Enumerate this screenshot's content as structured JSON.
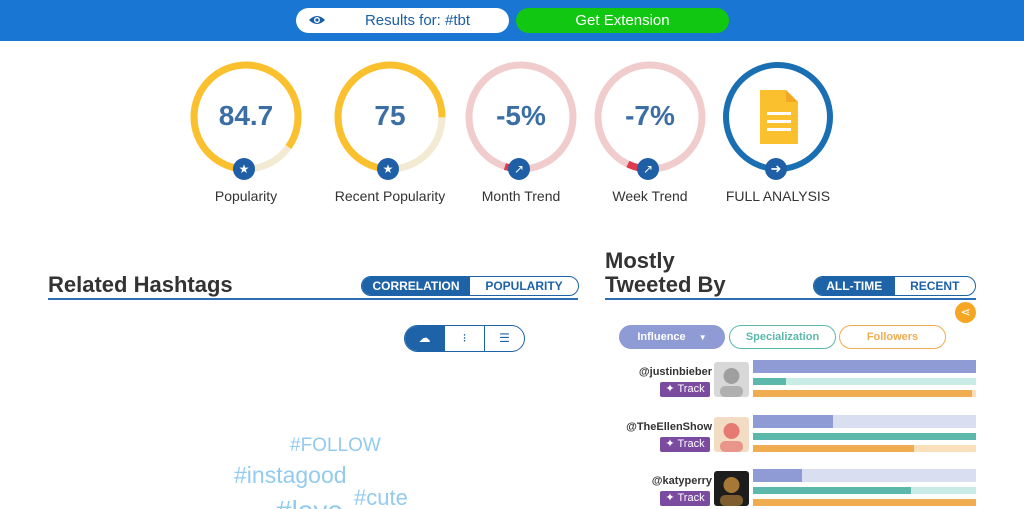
{
  "header": {
    "results_label": "Results for: #tbt",
    "extension_label": "Get Extension"
  },
  "gauges": [
    {
      "value": "84.7",
      "label": "Popularity",
      "fraction": 0.847,
      "color": "#fbc02d",
      "track": "#f3ead3",
      "badge_icon": "star-icon"
    },
    {
      "value": "75",
      "label": "Recent Popularity",
      "fraction": 0.75,
      "color": "#fbc02d",
      "track": "#f3ead3",
      "badge_icon": "star-icon"
    },
    {
      "value": "-5%",
      "label": "Month Trend",
      "fraction": 0.05,
      "color": "#f1cccc",
      "track": "#f1cccc",
      "badge_icon": "trend-icon"
    },
    {
      "value": "-7%",
      "label": "Week Trend",
      "fraction": 0.07,
      "color": "#f1cccc",
      "track": "#f1cccc",
      "badge_icon": "trend-icon"
    }
  ],
  "full_analysis": {
    "label": "FULL ANALYSIS",
    "color": "#1a6fb3",
    "icon": "document-icon",
    "badge_icon": "arrow-right-icon"
  },
  "related": {
    "title": "Related Hashtags",
    "tabs": [
      "CORRELATION",
      "POPULARITY"
    ],
    "active_tab": "CORRELATION",
    "view_icons": [
      "cloud-view-icon",
      "scatter-view-icon",
      "list-view-icon"
    ],
    "tags": [
      "#FOLLOW",
      "#instagood",
      "#cute",
      "#love"
    ]
  },
  "mostly": {
    "title_line1": "Mostly",
    "title_line2": "Tweeted By",
    "tabs": [
      "ALL-TIME",
      "RECENT"
    ],
    "active_tab": "ALL-TIME",
    "filters": [
      "Influence",
      "Specialization",
      "Followers"
    ],
    "active_filter": "Influence",
    "track_label": "Track",
    "colors": {
      "influence": "#8e9bd4",
      "specialization": "#5cb8ab",
      "followers": "#f0ac50"
    },
    "users": [
      {
        "handle": "@justinbieber",
        "influence": 1.0,
        "specialization": 0.15,
        "followers": 0.98
      },
      {
        "handle": "@TheEllenShow",
        "influence": 0.36,
        "specialization": 1.0,
        "followers": 0.72
      },
      {
        "handle": "@katyperry",
        "influence": 0.22,
        "specialization": 0.71,
        "followers": 1.0
      }
    ]
  }
}
